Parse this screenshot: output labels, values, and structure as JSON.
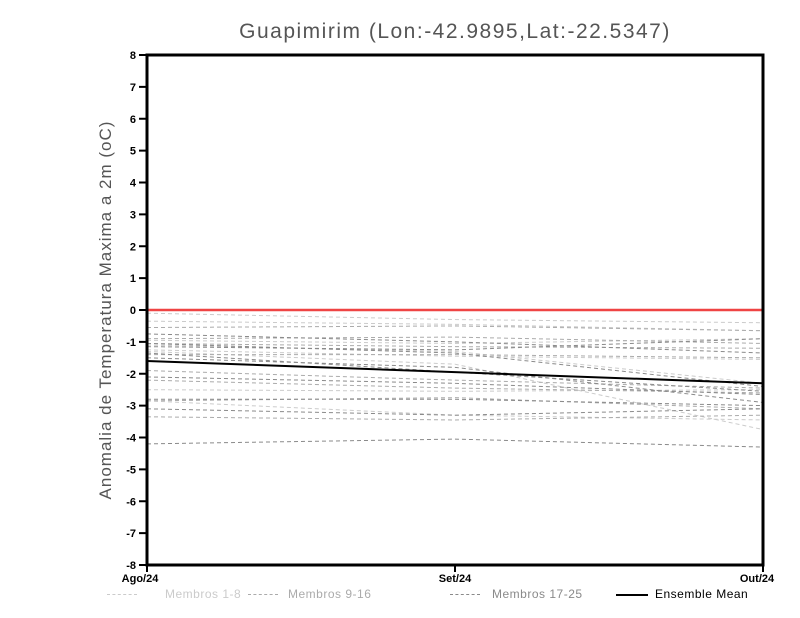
{
  "page": {
    "background": "#ffffff"
  },
  "chart_data": {
    "type": "line",
    "title": "Guapimirim (Lon:-42.9895,Lat:-22.5347)",
    "ylabel": "Anomalia de Temperatura Maxima a 2m (oC)",
    "x_categories": [
      "Ago/24",
      "Set/24",
      "Out/24"
    ],
    "ylim": [
      -8,
      8
    ],
    "ytick_step": 1,
    "grid": false,
    "legend_position": "bottom",
    "frame_color": "#000000",
    "zero_line": {
      "value": 0,
      "color": "#ef4444"
    },
    "groups": [
      {
        "name": "Membros 1-8",
        "color": "#cbcbcb",
        "style": "dashed"
      },
      {
        "name": "Membros 9-16",
        "color": "#ababab",
        "style": "dashed"
      },
      {
        "name": "Membros 17-25",
        "color": "#8a8a8a",
        "style": "dashed"
      }
    ],
    "members": [
      {
        "group": 0,
        "values": [
          -0.1,
          -0.3,
          -0.4
        ]
      },
      {
        "group": 0,
        "values": [
          -0.35,
          -0.45,
          -0.65
        ]
      },
      {
        "group": 0,
        "values": [
          -0.95,
          -1.05,
          -0.9
        ]
      },
      {
        "group": 0,
        "values": [
          -1.1,
          -1.3,
          -2.3
        ]
      },
      {
        "group": 0,
        "values": [
          -1.25,
          -1.45,
          -1.55
        ]
      },
      {
        "group": 0,
        "values": [
          -1.3,
          -1.7,
          -3.75
        ]
      },
      {
        "group": 0,
        "values": [
          -2.5,
          -2.55,
          -2.5
        ]
      },
      {
        "group": 0,
        "values": [
          -2.85,
          -3.3,
          -3.45
        ]
      },
      {
        "group": 1,
        "values": [
          -0.55,
          -0.5,
          -0.65
        ]
      },
      {
        "group": 1,
        "values": [
          -0.9,
          -0.85,
          -1.05
        ]
      },
      {
        "group": 1,
        "values": [
          -1.05,
          -1.15,
          -1.2
        ]
      },
      {
        "group": 1,
        "values": [
          -1.4,
          -1.4,
          -1.5
        ]
      },
      {
        "group": 1,
        "values": [
          -1.9,
          -2.2,
          -2.45
        ]
      },
      {
        "group": 1,
        "values": [
          -2.2,
          -2.45,
          -2.6
        ]
      },
      {
        "group": 1,
        "values": [
          -2.85,
          -2.75,
          -3.1
        ]
      },
      {
        "group": 1,
        "values": [
          -3.35,
          -3.45,
          -3.3
        ]
      },
      {
        "group": 2,
        "values": [
          -0.75,
          -1.0,
          -1.35
        ]
      },
      {
        "group": 2,
        "values": [
          -1.05,
          -1.35,
          -2.4
        ]
      },
      {
        "group": 2,
        "values": [
          -1.15,
          -1.25,
          -0.9
        ]
      },
      {
        "group": 2,
        "values": [
          -1.35,
          -1.95,
          -2.55
        ]
      },
      {
        "group": 2,
        "values": [
          -1.5,
          -1.8,
          -2.9
        ]
      },
      {
        "group": 2,
        "values": [
          -2.1,
          -2.3,
          -2.65
        ]
      },
      {
        "group": 2,
        "values": [
          -2.8,
          -2.8,
          -3.0
        ]
      },
      {
        "group": 2,
        "values": [
          -3.1,
          -3.3,
          -3.1
        ]
      },
      {
        "group": 2,
        "values": [
          -4.2,
          -4.05,
          -4.3
        ]
      }
    ],
    "ensemble_mean": {
      "name": "Ensemble Mean",
      "color": "#000000",
      "values": [
        -1.6,
        -1.95,
        -2.3
      ]
    }
  }
}
